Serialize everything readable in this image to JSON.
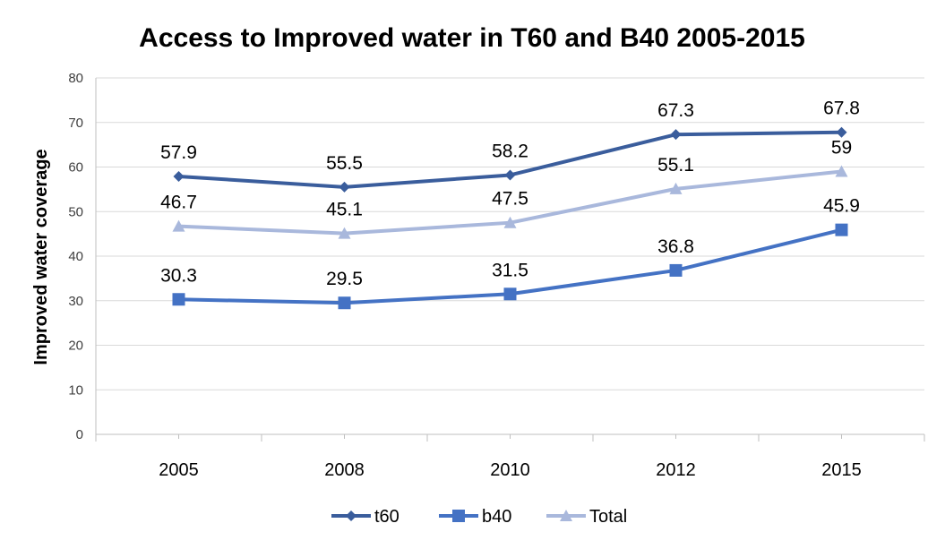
{
  "chart_data": {
    "type": "line",
    "title": "Access to Improved water in T60 and B40 2005-2015",
    "xlabel": "",
    "ylabel": "Improved water coverage",
    "categories": [
      "2005",
      "2008",
      "2010",
      "2012",
      "2015"
    ],
    "ylim": [
      0,
      80
    ],
    "yticks": [
      0,
      10,
      20,
      30,
      40,
      50,
      60,
      70,
      80
    ],
    "grid": true,
    "legend_position": "bottom",
    "series": [
      {
        "name": "t60",
        "values": [
          57.9,
          55.5,
          58.2,
          67.3,
          67.8
        ],
        "labels": [
          "57.9",
          "55.5",
          "58.2",
          "67.3",
          "67.8"
        ],
        "color": "#3a5d9c",
        "marker": "diamond"
      },
      {
        "name": "b40",
        "values": [
          30.3,
          29.5,
          31.5,
          36.8,
          45.9
        ],
        "labels": [
          "30.3",
          "29.5",
          "31.5",
          "36.8",
          "45.9"
        ],
        "color": "#4472c4",
        "marker": "square"
      },
      {
        "name": "Total",
        "values": [
          46.7,
          45.1,
          47.5,
          55.1,
          59
        ],
        "labels": [
          "46.7",
          "45.1",
          "47.5",
          "55.1",
          "59"
        ],
        "color": "#a9b8dc",
        "marker": "triangle"
      }
    ]
  }
}
